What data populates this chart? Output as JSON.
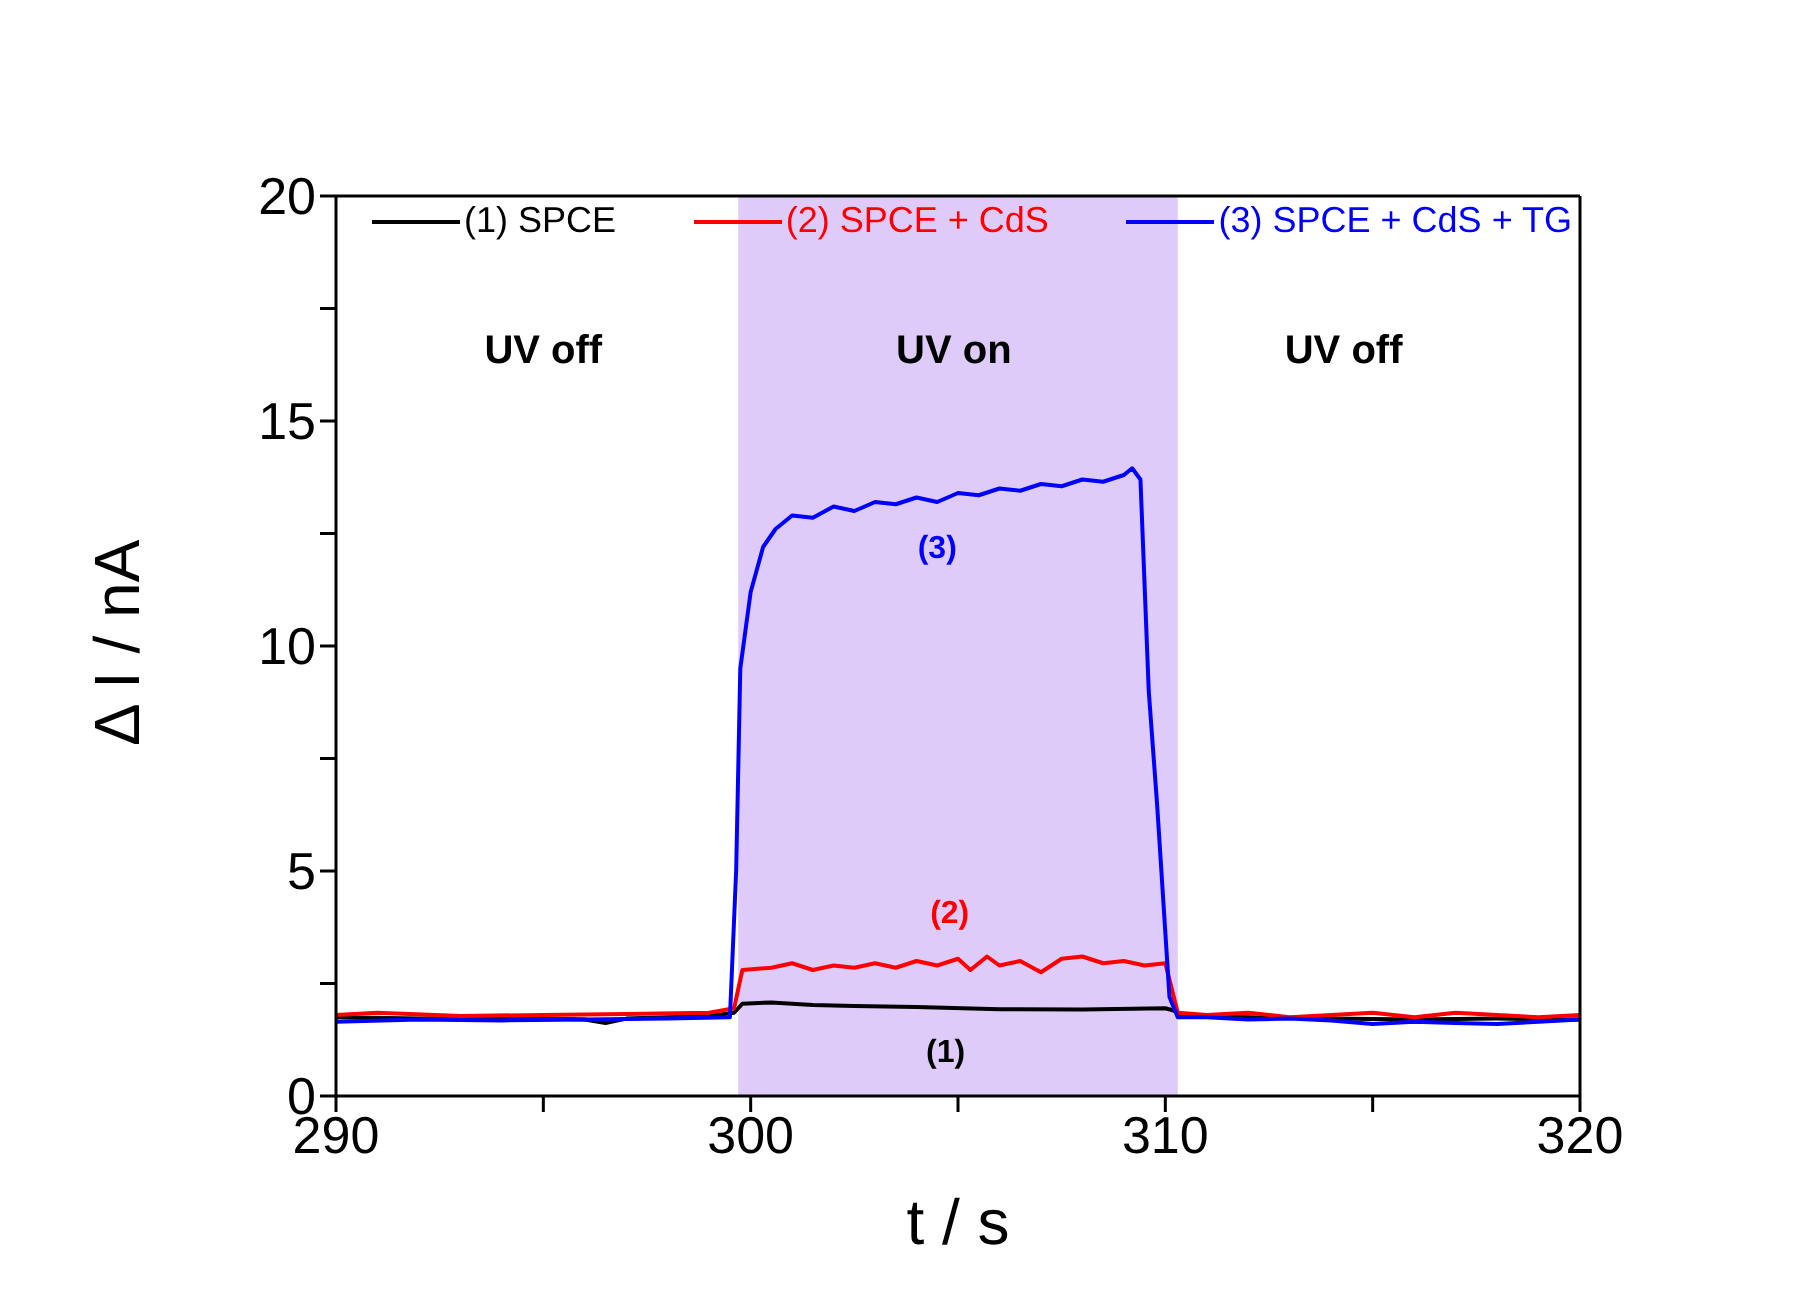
{
  "chart_data": {
    "type": "line",
    "xlabel": "t / s",
    "ylabel": "Δ I / nA",
    "xlim": [
      290,
      320
    ],
    "ylim": [
      0,
      20
    ],
    "xticks": [
      290,
      {
        "value": 295,
        "label": null
      },
      300,
      {
        "value": 305,
        "label": null
      },
      310,
      {
        "value": 315,
        "label": null
      },
      320
    ],
    "yticks": [
      0,
      {
        "value": 2.5,
        "label": null
      },
      5,
      {
        "value": 7.5,
        "label": null
      },
      10,
      {
        "value": 12.5,
        "label": null
      },
      15,
      {
        "value": 17.5,
        "label": null
      },
      20
    ],
    "grid": false,
    "legend": "top",
    "marker": "none",
    "line_style": "solid",
    "bands": [
      {
        "axis": "x",
        "from": 299.7,
        "to": 310.3,
        "color": "#dfcbf9"
      }
    ],
    "annotations": [
      "UV off",
      "UV on",
      "UV off",
      "(3)",
      "(2)",
      "(1)"
    ],
    "series": [
      {
        "name": "(1) SPCE",
        "color": "#000000",
        "x": [
          290,
          292,
          294,
          296,
          296.5,
          297,
          299,
          299.6,
          299.8,
          300.5,
          301.5,
          302.5,
          304,
          306,
          308,
          310,
          310.2,
          310.4,
          312,
          314,
          316,
          318,
          320
        ],
        "values": [
          1.75,
          1.72,
          1.75,
          1.7,
          1.62,
          1.72,
          1.78,
          1.85,
          2.05,
          2.08,
          2.02,
          2.0,
          1.98,
          1.93,
          1.92,
          1.95,
          1.9,
          1.78,
          1.75,
          1.72,
          1.7,
          1.72,
          1.7
        ]
      },
      {
        "name": "(2) SPCE + CdS",
        "color": "#ff0000",
        "x": [
          290,
          291,
          293,
          295,
          297,
          299,
          299.6,
          299.8,
          300.5,
          301,
          301.5,
          302,
          302.5,
          303,
          303.5,
          304,
          304.5,
          305,
          305.3,
          305.7,
          306,
          306.5,
          307,
          307.5,
          308,
          308.5,
          309,
          309.5,
          310,
          310.3,
          311,
          312,
          313,
          314,
          315,
          316,
          317,
          318,
          319,
          320
        ],
        "values": [
          1.8,
          1.85,
          1.78,
          1.8,
          1.82,
          1.85,
          1.95,
          2.8,
          2.85,
          2.95,
          2.8,
          2.9,
          2.85,
          2.95,
          2.85,
          3.0,
          2.9,
          3.05,
          2.8,
          3.1,
          2.9,
          3.0,
          2.75,
          3.05,
          3.1,
          2.95,
          3.0,
          2.9,
          2.95,
          1.85,
          1.8,
          1.85,
          1.75,
          1.8,
          1.85,
          1.75,
          1.85,
          1.8,
          1.75,
          1.8
        ]
      },
      {
        "name": "(3) SPCE + CdS + TG",
        "color": "#0000ff",
        "x": [
          290,
          292,
          294,
          296,
          298,
          299.5,
          299.65,
          299.75,
          300,
          300.3,
          300.6,
          301,
          301.5,
          302,
          302.5,
          303,
          303.5,
          304,
          304.5,
          305,
          305.5,
          306,
          306.5,
          307,
          307.5,
          308,
          308.5,
          309,
          309.2,
          309.4,
          309.6,
          309.8,
          310.1,
          310.3,
          311,
          312,
          313,
          314,
          315,
          316,
          317,
          318,
          319,
          320
        ],
        "values": [
          1.65,
          1.7,
          1.68,
          1.7,
          1.72,
          1.75,
          5,
          9.5,
          11.2,
          12.2,
          12.6,
          12.9,
          12.85,
          13.1,
          13.0,
          13.2,
          13.15,
          13.3,
          13.2,
          13.4,
          13.35,
          13.5,
          13.45,
          13.6,
          13.55,
          13.7,
          13.65,
          13.8,
          13.95,
          13.7,
          9,
          6.5,
          2.2,
          1.75,
          1.75,
          1.7,
          1.72,
          1.68,
          1.6,
          1.65,
          1.62,
          1.6,
          1.65,
          1.7
        ]
      }
    ]
  }
}
